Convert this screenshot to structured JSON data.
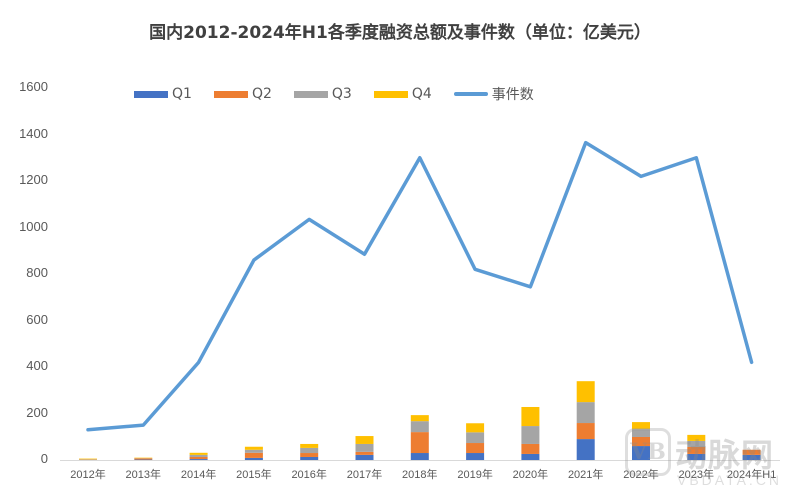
{
  "chart_data": {
    "type": "bar",
    "subtype": "stacked-bar-with-line",
    "title": "国内2012-2024年H1各季度融资总额及事件数（单位：亿美元）",
    "xlabel": "",
    "ylabel": "",
    "ylim": [
      0,
      1600
    ],
    "yticks": [
      0,
      200,
      400,
      600,
      800,
      1000,
      1200,
      1400,
      1600
    ],
    "grid": false,
    "legend_position": "top",
    "categories": [
      "2012年",
      "2013年",
      "2014年",
      "2015年",
      "2016年",
      "2017年",
      "2018年",
      "2019年",
      "2020年",
      "2021年",
      "2022年",
      "2023年",
      "2024年H1"
    ],
    "series": [
      {
        "name": "Q1",
        "type": "bar",
        "color": "#4472C4",
        "values": [
          1,
          2,
          4,
          9,
          13,
          22,
          30,
          30,
          26,
          90,
          60,
          26,
          22
        ]
      },
      {
        "name": "Q2",
        "type": "bar",
        "color": "#ED7D31",
        "values": [
          1,
          5,
          9,
          22,
          17,
          13,
          90,
          43,
          43,
          69,
          39,
          30,
          22
        ]
      },
      {
        "name": "Q3",
        "type": "bar",
        "color": "#A5A5A5",
        "values": [
          1,
          1,
          9,
          13,
          22,
          34,
          47,
          46,
          77,
          90,
          34,
          26,
          0
        ]
      },
      {
        "name": "Q4",
        "type": "bar",
        "color": "#FFC000",
        "values": [
          3,
          2,
          9,
          13,
          17,
          34,
          26,
          39,
          82,
          90,
          30,
          26,
          0
        ]
      },
      {
        "name": "事件数",
        "type": "line",
        "color": "#5B9BD5",
        "values": [
          130,
          150,
          420,
          860,
          1035,
          885,
          1300,
          820,
          745,
          1365,
          1220,
          1300,
          420
        ]
      }
    ]
  },
  "legend": {
    "q1": "Q1",
    "q2": "Q2",
    "q3": "Q3",
    "q4": "Q4",
    "events": "事件数"
  },
  "watermark": {
    "logo": "VB",
    "cn": "动脉网",
    "en": "VBDATA.CN"
  }
}
